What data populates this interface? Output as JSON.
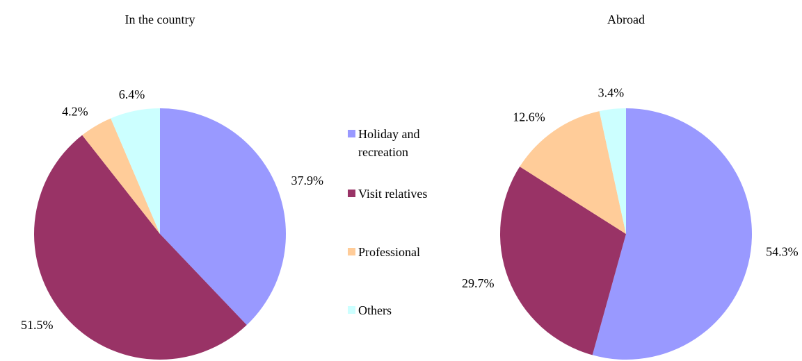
{
  "chart_data": [
    {
      "type": "pie",
      "title": "In the country",
      "categories": [
        "Holiday and recreation",
        "Visit relatives",
        "Professional",
        "Others"
      ],
      "values": [
        37.9,
        51.5,
        4.2,
        6.4
      ],
      "value_labels": [
        "37.9%",
        "51.5%",
        "4.2%",
        "6.4%"
      ],
      "colors": [
        "#9999ff",
        "#993366",
        "#ffcc99",
        "#ccffff"
      ],
      "legend": "right"
    },
    {
      "type": "pie",
      "title": "Abroad",
      "categories": [
        "Holiday and recreation",
        "Visit relatives",
        "Professional",
        "Others"
      ],
      "values": [
        54.3,
        29.7,
        12.6,
        3.4
      ],
      "value_labels": [
        "54.3%",
        "29.7%",
        "12.6%",
        "3.4%"
      ],
      "colors": [
        "#9999ff",
        "#993366",
        "#ffcc99",
        "#ccffff"
      ]
    }
  ]
}
